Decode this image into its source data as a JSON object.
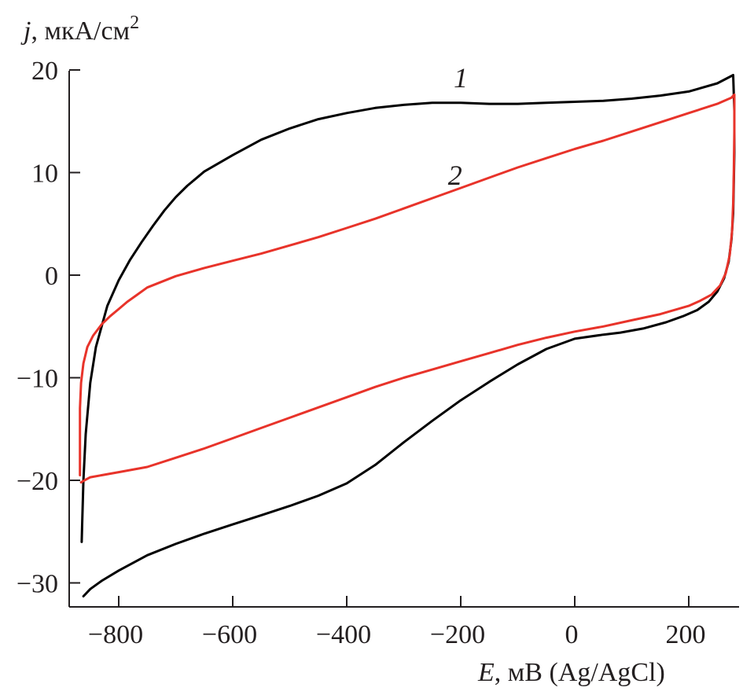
{
  "chart_data": {
    "type": "line",
    "ylabel": {
      "symbol": "j",
      "rest": ", мкА/см",
      "sup": "2"
    },
    "xlabel": {
      "symbol": "E",
      "rest": ", мВ (Ag/AgCl)"
    },
    "xlim": [
      -880,
      290
    ],
    "ylim": [
      -32.5,
      20
    ],
    "x_ticks": [
      -800,
      -600,
      -400,
      -200,
      0,
      200
    ],
    "x_tick_labels": [
      "−800",
      "−600",
      "−400",
      "−200",
      "0",
      "200"
    ],
    "y_ticks": [
      20,
      10,
      0,
      -10,
      -20,
      -30
    ],
    "y_tick_labels": [
      "20",
      "10",
      "0",
      "−10",
      "−20",
      "−30"
    ],
    "grid": false,
    "series": [
      {
        "name": "1",
        "color": "#000000",
        "label_at": {
          "x": -200,
          "y": 18.3
        },
        "x": [
          -865,
          -864,
          -862,
          -858,
          -850,
          -840,
          -820,
          -800,
          -780,
          -760,
          -740,
          -720,
          -700,
          -680,
          -650,
          -600,
          -550,
          -500,
          -450,
          -400,
          -350,
          -300,
          -250,
          -200,
          -150,
          -100,
          -50,
          0,
          50,
          100,
          150,
          200,
          250,
          278,
          280,
          280,
          279,
          278,
          275,
          270,
          262,
          250,
          235,
          215,
          190,
          160,
          120,
          80,
          50,
          0,
          -50,
          -100,
          -150,
          -200,
          -250,
          -300,
          -350,
          -400,
          -450,
          -500,
          -550,
          -600,
          -650,
          -700,
          -750,
          -800,
          -830,
          -850,
          -862
        ],
        "y": [
          -26,
          -24,
          -20,
          -15.5,
          -10.5,
          -7,
          -3,
          -0.5,
          1.5,
          3.2,
          4.8,
          6.3,
          7.6,
          8.7,
          10.1,
          11.7,
          13.2,
          14.3,
          15.2,
          15.8,
          16.3,
          16.6,
          16.8,
          16.8,
          16.7,
          16.7,
          16.8,
          16.9,
          17,
          17.2,
          17.5,
          17.9,
          18.7,
          19.5,
          16,
          12,
          9,
          6,
          3.5,
          1.3,
          -0.3,
          -1.6,
          -2.6,
          -3.4,
          -4,
          -4.6,
          -5.2,
          -5.6,
          -5.8,
          -6.2,
          -7.2,
          -8.7,
          -10.4,
          -12.2,
          -14.2,
          -16.3,
          -18.5,
          -20.3,
          -21.5,
          -22.5,
          -23.4,
          -24.3,
          -25.2,
          -26.2,
          -27.3,
          -28.8,
          -29.8,
          -30.6,
          -31.3
        ]
      },
      {
        "name": "2",
        "color": "#e8332a",
        "label_at": {
          "x": -210,
          "y": 8.8
        },
        "x": [
          -868,
          -868,
          -866,
          -862,
          -855,
          -845,
          -830,
          -815,
          -800,
          -785,
          -770,
          -750,
          -700,
          -650,
          -600,
          -550,
          -500,
          -450,
          -400,
          -350,
          -300,
          -250,
          -200,
          -150,
          -100,
          -50,
          0,
          50,
          100,
          150,
          200,
          250,
          275,
          280,
          280,
          279,
          278,
          276,
          272,
          265,
          255,
          240,
          220,
          200,
          150,
          100,
          50,
          0,
          -50,
          -100,
          -150,
          -200,
          -250,
          -300,
          -350,
          -400,
          -450,
          -500,
          -550,
          -600,
          -650,
          -700,
          -750,
          -800,
          -830,
          -850,
          -860,
          -866
        ],
        "y": [
          -19.5,
          -13,
          -10.5,
          -8.6,
          -7,
          -5.9,
          -4.8,
          -4,
          -3.3,
          -2.6,
          -2,
          -1.2,
          -0.1,
          0.7,
          1.4,
          2.1,
          2.9,
          3.7,
          4.6,
          5.5,
          6.5,
          7.5,
          8.5,
          9.5,
          10.5,
          11.4,
          12.3,
          13.1,
          14,
          14.9,
          15.8,
          16.7,
          17.3,
          17.6,
          14,
          10,
          7,
          4.3,
          2,
          0.2,
          -1,
          -1.9,
          -2.5,
          -3,
          -3.8,
          -4.4,
          -5,
          -5.5,
          -6.1,
          -6.8,
          -7.6,
          -8.4,
          -9.2,
          -10,
          -10.9,
          -11.9,
          -12.9,
          -13.9,
          -14.9,
          -15.9,
          -16.9,
          -17.8,
          -18.7,
          -19.2,
          -19.5,
          -19.7,
          -20,
          -20.2
        ]
      }
    ]
  }
}
